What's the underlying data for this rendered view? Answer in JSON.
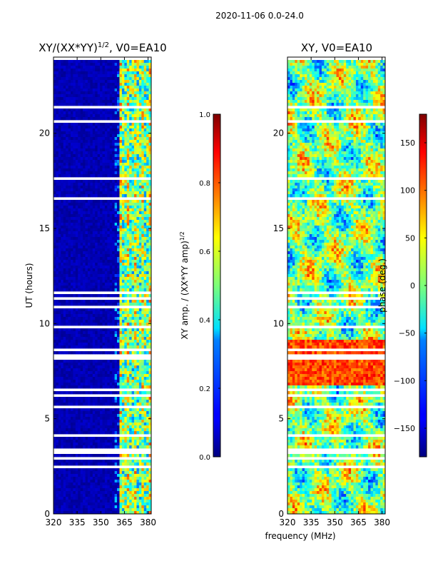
{
  "suptitle": "2020-11-06 0.0-24.0",
  "shared_xlabel": "frequency (MHz)",
  "chart_data": [
    {
      "type": "heatmap",
      "title": "XY/(XX*YY)",
      "title_superscript": "1/2",
      "title_suffix": ", V0=EA10",
      "ylabel": "UT (hours)",
      "xlim": [
        320,
        382
      ],
      "ylim": [
        0,
        24
      ],
      "xticks": [
        "320",
        "335",
        "350",
        "365",
        "380"
      ],
      "yticks": [
        "0",
        "5",
        "10",
        "15",
        "20"
      ],
      "colorbar": {
        "label": "XY amp. / (XX*YY amp)",
        "label_superscript": "1/2",
        "range": [
          0.0,
          1.0
        ],
        "ticks": [
          "0.0",
          "0.2",
          "0.4",
          "0.6",
          "0.8",
          "1.0"
        ]
      }
    },
    {
      "type": "heatmap",
      "title": "XY, V0=EA10",
      "ylabel": "",
      "xlim": [
        320,
        382
      ],
      "ylim": [
        0,
        24
      ],
      "xticks": [
        "320",
        "335",
        "350",
        "365",
        "380"
      ],
      "yticks": [
        "0",
        "5",
        "10",
        "15",
        "20"
      ],
      "colorbar": {
        "label": "phase (deg.)",
        "range": [
          -180,
          180
        ],
        "ticks": [
          "−150",
          "−100",
          "−50",
          "0",
          "50",
          "100",
          "150"
        ]
      }
    }
  ]
}
